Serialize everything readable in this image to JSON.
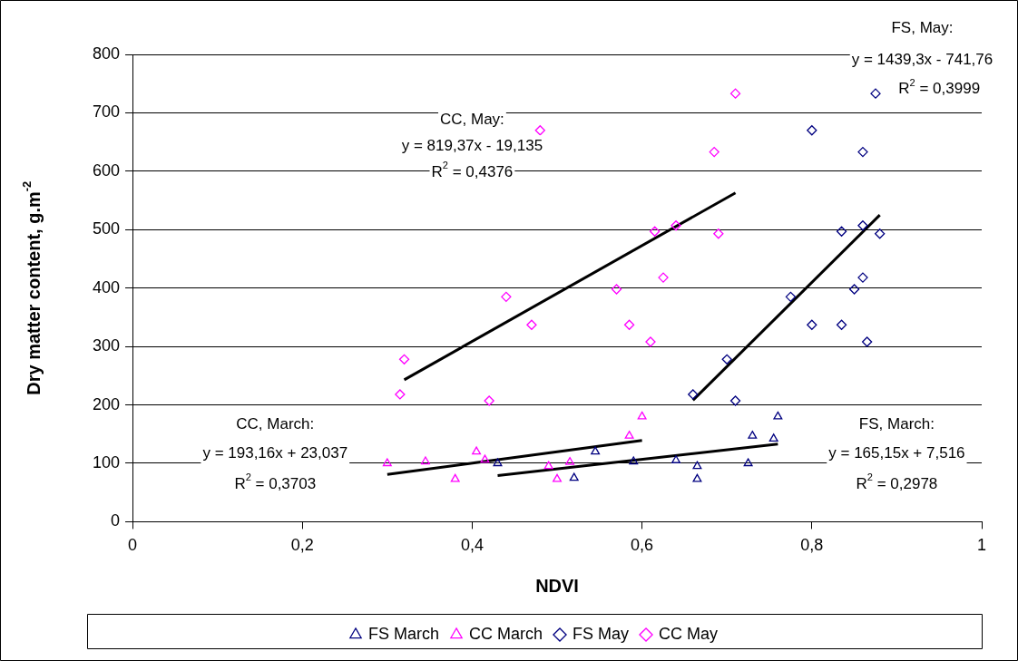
{
  "chart_data": {
    "type": "scatter",
    "xlabel": "NDVI",
    "ylabel": "Dry matter content, g.m$^{-2}$",
    "xlim": [
      0,
      1
    ],
    "xticks": [
      0,
      {
        "value": 0.2,
        "label": "0,2"
      },
      {
        "value": 0.4,
        "label": "0,4"
      },
      {
        "value": 0.6,
        "label": "0,6"
      },
      {
        "value": 0.8,
        "label": "0,8"
      },
      1
    ],
    "ylim": [
      0,
      800
    ],
    "yticks": [
      0,
      100,
      200,
      300,
      400,
      500,
      600,
      700,
      800
    ],
    "grid": "y",
    "legend": "bottom",
    "series": [
      {
        "name": "FS March",
        "color": "#000080",
        "marker": "triangle",
        "x": [
          0.43,
          0.52,
          0.545,
          0.59,
          0.64,
          0.665,
          0.665,
          0.725,
          0.73,
          0.755,
          0.76
        ],
        "values": [
          100,
          75,
          120,
          103,
          105,
          95,
          73,
          100,
          147,
          142,
          180
        ]
      },
      {
        "name": "CC March",
        "color": "#ff00ff",
        "marker": "triangle",
        "x": [
          0.3,
          0.345,
          0.38,
          0.405,
          0.415,
          0.49,
          0.5,
          0.515,
          0.585,
          0.6
        ],
        "values": [
          100,
          103,
          73,
          120,
          106,
          95,
          73,
          102,
          147,
          180
        ]
      },
      {
        "name": "FS May",
        "color": "#000080",
        "marker": "diamond",
        "x": [
          0.66,
          0.7,
          0.71,
          0.775,
          0.8,
          0.8,
          0.835,
          0.835,
          0.85,
          0.86,
          0.86,
          0.86,
          0.865,
          0.875,
          0.88
        ],
        "values": [
          218,
          278,
          207,
          385,
          670,
          337,
          497,
          337,
          398,
          418,
          633,
          507,
          308,
          733,
          493
        ]
      },
      {
        "name": "CC May",
        "color": "#ff00ff",
        "marker": "diamond",
        "x": [
          0.315,
          0.32,
          0.42,
          0.44,
          0.47,
          0.48,
          0.57,
          0.585,
          0.61,
          0.615,
          0.625,
          0.64,
          0.685,
          0.69,
          0.71
        ],
        "values": [
          218,
          278,
          207,
          385,
          337,
          670,
          398,
          337,
          308,
          497,
          418,
          507,
          633,
          493,
          733
        ]
      },
      {
        "type": "line",
        "color": "#000000",
        "marker": "none",
        "x": [
          0.43,
          0.76
        ],
        "values": [
          79,
          133
        ]
      },
      {
        "type": "line",
        "color": "#000000",
        "marker": "none",
        "x": [
          0.3,
          0.6
        ],
        "values": [
          81,
          139
        ]
      },
      {
        "type": "line",
        "color": "#000000",
        "marker": "none",
        "x": [
          0.66,
          0.88
        ],
        "values": [
          208,
          525
        ]
      },
      {
        "type": "line",
        "color": "#000000",
        "marker": "none",
        "x": [
          0.32,
          0.71
        ],
        "values": [
          243,
          563
        ]
      }
    ],
    "annotations": [
      "CC, May:",
      "y = 819,37x - 19,135",
      "R$^{2}$ = 0,4376",
      "CC, March:",
      "y = 193,16x + 23,037",
      "R$^{2}$ = 0,3703",
      "FS, March:",
      "y = 165,15x + 7,516",
      "R$^{2}$ = 0,2978",
      "FS, May:",
      "y = 1439,3x - 741,76",
      "R$^{2}$ = 0,3999"
    ]
  }
}
